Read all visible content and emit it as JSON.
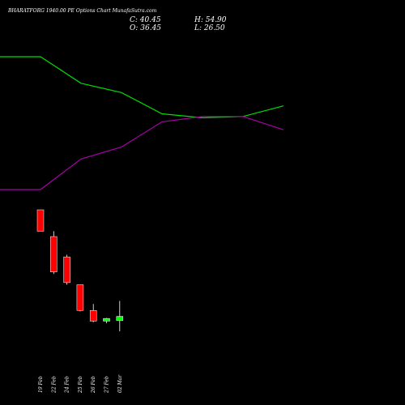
{
  "chart_title": "BHARATFORG 1940.00  PE Options  Chart MunafaSutra.com",
  "ohlc": {
    "close": "C: 40.45",
    "high": "H: 54.90",
    "open": "O: 36.45",
    "low": "L: 26.50"
  },
  "colors": {
    "background": "#000000",
    "up": "#00ff00",
    "down": "#ff0000",
    "line_green": "#00dd00",
    "line_magenta": "#aa00aa"
  },
  "chart_data": [
    {
      "type": "line",
      "series": [
        {
          "color": "#00dd00",
          "values": [
            100,
            100,
            80,
            73,
            57,
            54,
            55,
            63
          ]
        },
        {
          "color": "#aa00aa",
          "values": [
            0,
            0,
            23,
            32,
            51,
            55,
            55,
            45
          ]
        }
      ]
    },
    {
      "type": "candlestick",
      "categories": [
        "19 Feb",
        "22 Feb",
        "24 Feb",
        "25 Feb",
        "26 Feb",
        "27 Feb",
        "02 Mar"
      ],
      "ohlc": [
        {
          "open": 140,
          "high": 140,
          "low": 120,
          "close": 120
        },
        {
          "open": 115,
          "high": 120,
          "low": 80,
          "close": 82
        },
        {
          "open": 96,
          "high": 98,
          "low": 70,
          "close": 72
        },
        {
          "open": 70,
          "high": 70,
          "low": 45,
          "close": 46
        },
        {
          "open": 46,
          "high": 52,
          "low": 35,
          "close": 36
        },
        {
          "open": 36,
          "high": 39,
          "low": 34,
          "close": 38.5
        },
        {
          "open": 36.45,
          "high": 54.9,
          "low": 26.5,
          "close": 40.45
        }
      ]
    }
  ]
}
